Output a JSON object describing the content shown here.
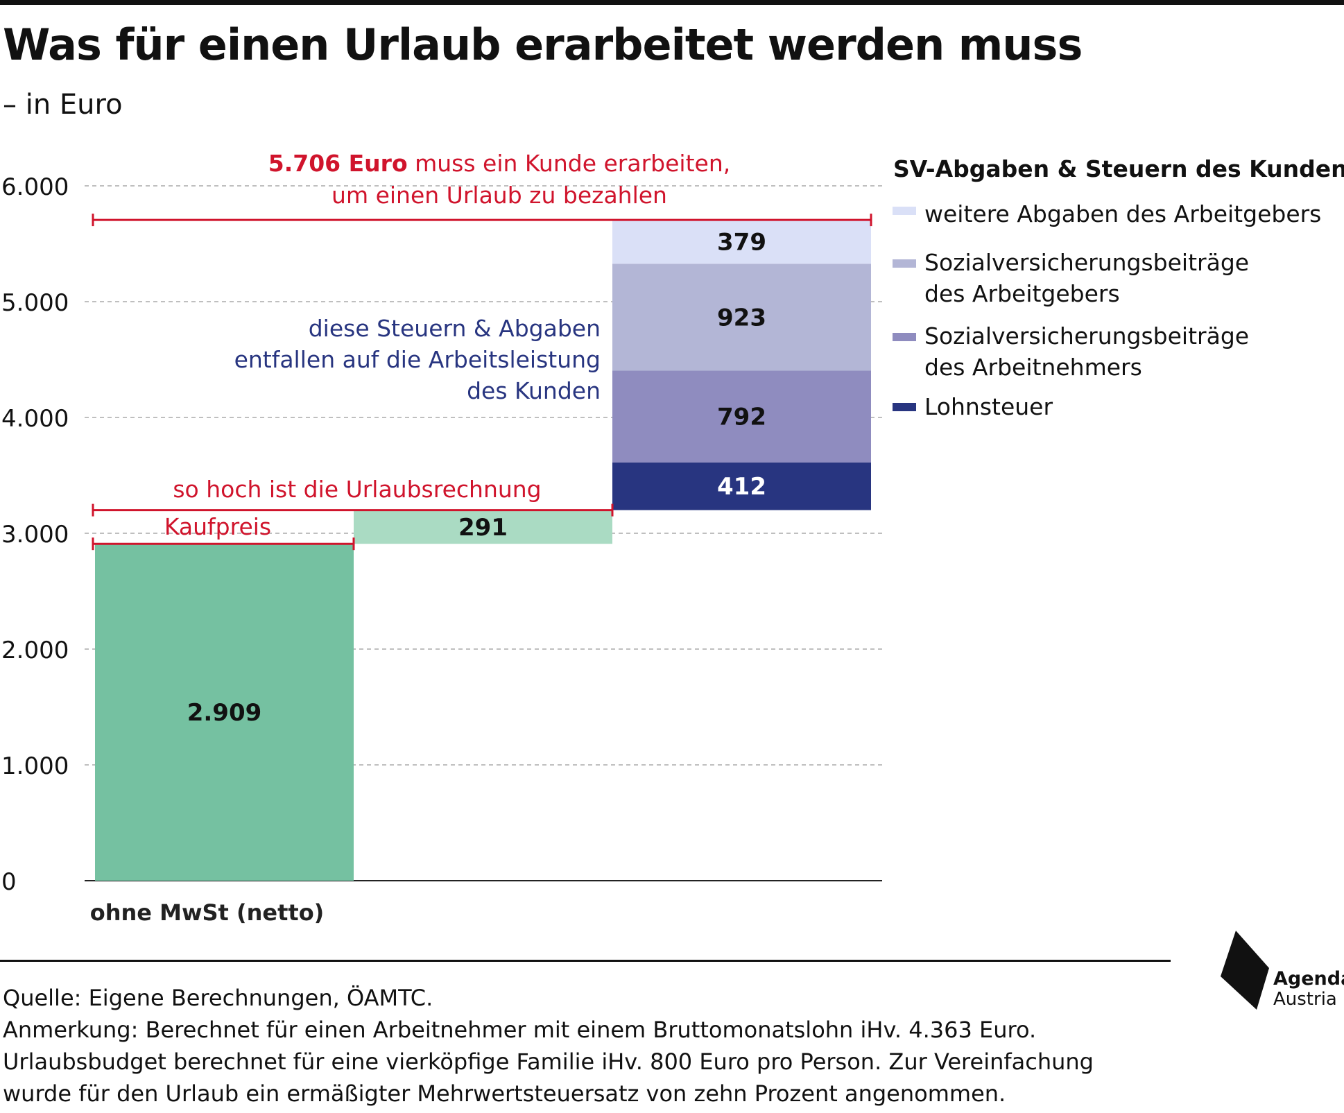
{
  "title": "Was für einen Urlaub erarbeitet werden muss",
  "subtitle": "– in Euro",
  "chart_data": {
    "type": "bar",
    "subtype": "waterfall-stacked",
    "ylim": [
      0,
      6000
    ],
    "grid": true,
    "y_ticks": [
      "0",
      "1.000",
      "2.000",
      "3.000",
      "4.000",
      "5.000",
      "6.000"
    ],
    "categories": [
      "ohne MwSt (netto)",
      "",
      ""
    ],
    "bars": [
      {
        "base": 0,
        "value": 2909,
        "label": "2.909",
        "color": "#75c1a1"
      },
      {
        "base": 2909,
        "value": 291,
        "label": "291",
        "color": "#aadbc3"
      }
    ],
    "stack": {
      "base": 3200,
      "segments": [
        {
          "name": "Lohnsteuer",
          "value": 412,
          "label": "412",
          "color": "#283580",
          "label_color": "#ffffff"
        },
        {
          "name": "Sozialversicherungsbeiträge des Arbeitnehmers",
          "value": 792,
          "label": "792",
          "color": "#8f8cbf",
          "label_color": "#111111"
        },
        {
          "name": "Sozialversicherungsbeiträge des Arbeitgebers",
          "value": 923,
          "label": "923",
          "color": "#b3b6d6",
          "label_color": "#111111"
        },
        {
          "name": "weitere Abgaben des Arbeitgebers",
          "value": 379,
          "label": "379",
          "color": "#dae0f7",
          "label_color": "#111111"
        }
      ]
    },
    "legend": {
      "title": "SV-Abgaben & Steuern des Kunden:",
      "placement": "right",
      "items": [
        {
          "lines": [
            "weitere Abgaben des Arbeitgebers"
          ],
          "color": "#dae0f7"
        },
        {
          "lines": [
            "Sozialversicherungsbeiträge",
            "des Arbeitgebers"
          ],
          "color": "#b3b6d6"
        },
        {
          "lines": [
            "Sozialversicherungsbeiträge",
            "des Arbeitnehmers"
          ],
          "color": "#8f8cbf"
        },
        {
          "lines": [
            "Lohnsteuer"
          ],
          "color": "#283580"
        }
      ]
    },
    "annotations": {
      "total_strong": "5.706 Euro",
      "total_rest": " muss ein Kunde erarbeiten,",
      "total_line2": "um einen Urlaub zu bezahlen",
      "total_value": 5706,
      "invoice": "so hoch ist die Urlaubsrechnung",
      "invoice_value": 3200,
      "price": "Kaufpreis",
      "price_value": 2909,
      "taxes_lines": [
        "diese Steuern & Abgaben",
        "entfallen auf die Arbeitsleistung",
        "des Kunden"
      ],
      "annotation_color": "#d0142c",
      "taxes_color": "#283580"
    }
  },
  "footer": {
    "source": "Quelle: Eigene Berechnungen, ÖAMTC.",
    "note1": "Anmerkung: Berechnet für einen Arbeitnehmer mit einem Bruttomonatslohn iHv. 4.363 Euro.",
    "note2": "Urlaubsbudget berechnet für eine vierköpfige Familie iHv. 800 Euro pro Person. Zur Vereinfachung",
    "note3": "wurde für den Urlaub ein ermäßigter Mehrwertsteuersatz von zehn Prozent angenommen."
  },
  "logo": {
    "line1": "Agenda",
    "line2": "Austria"
  }
}
